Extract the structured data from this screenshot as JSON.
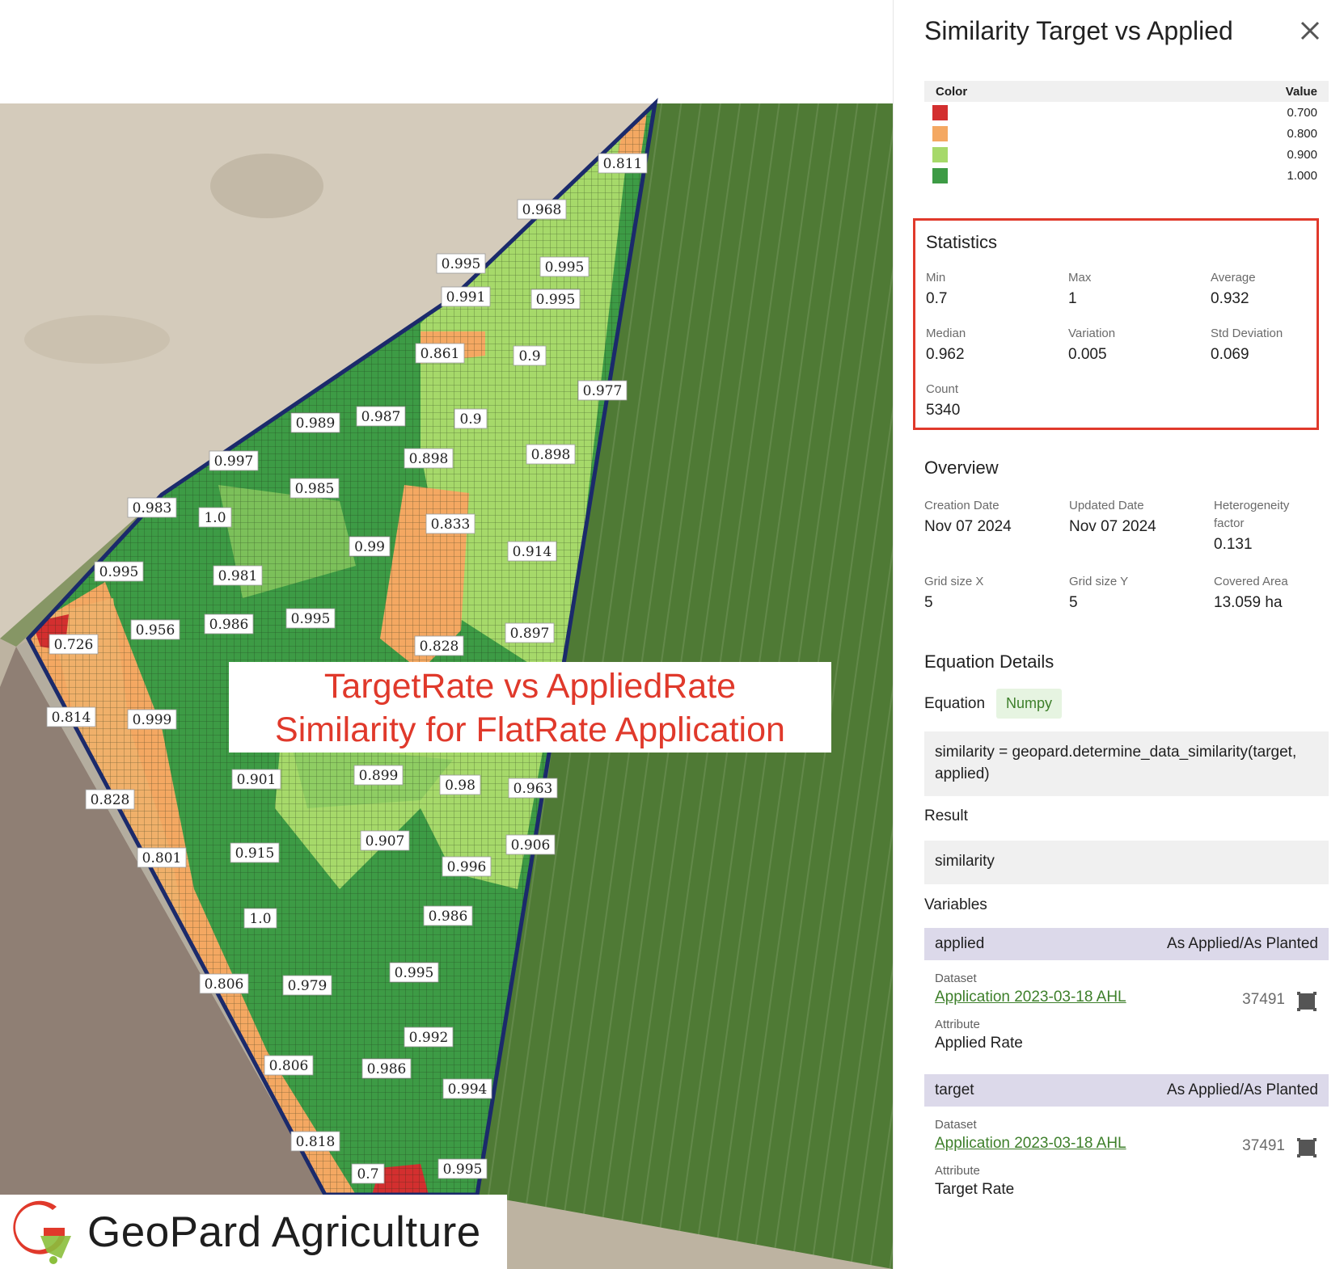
{
  "map": {
    "grid_labels": [
      "0.811",
      "0.968",
      "0.995",
      "0.995",
      "0.991",
      "0.995",
      "0.861",
      "0.9",
      "0.977",
      "0.989",
      "0.987",
      "0.9",
      "0.997",
      "0.898",
      "0.898",
      "0.985",
      "0.983",
      "1.0",
      "0.833",
      "0.99",
      "0.914",
      "0.995",
      "0.981",
      "0.956",
      "0.986",
      "0.995",
      "0.828",
      "0.897",
      "0.726",
      "0.814",
      "0.999",
      "0.901",
      "0.899",
      "0.98",
      "0.963",
      "0.828",
      "0.915",
      "0.907",
      "0.906",
      "0.801",
      "0.996",
      "1.0",
      "0.986",
      "0.806",
      "0.979",
      "0.995",
      "0.992",
      "0.806",
      "0.986",
      "0.994",
      "0.818",
      "0.7",
      "0.995"
    ],
    "caption_line1": "TargetRate vs AppliedRate",
    "caption_line2": "Similarity for FlatRate Application",
    "brand": "GeoPard Agriculture"
  },
  "panel": {
    "title": "Similarity Target vs Applied",
    "close_icon": "close-icon",
    "legend": {
      "col_color": "Color",
      "col_value": "Value",
      "rows": [
        {
          "color": "#d32f2f",
          "value": "0.700"
        },
        {
          "color": "#f4a862",
          "value": "0.800"
        },
        {
          "color": "#a6d96a",
          "value": "0.900"
        },
        {
          "color": "#3d9b45",
          "value": "1.000"
        }
      ]
    },
    "statistics": {
      "title": "Statistics",
      "min_label": "Min",
      "min": "0.7",
      "max_label": "Max",
      "max": "1",
      "avg_label": "Average",
      "avg": "0.932",
      "median_label": "Median",
      "median": "0.962",
      "variation_label": "Variation",
      "variation": "0.005",
      "std_label": "Std Deviation",
      "std": "0.069",
      "count_label": "Count",
      "count": "5340"
    },
    "overview": {
      "title": "Overview",
      "creation_label": "Creation Date",
      "creation": "Nov 07 2024",
      "updated_label": "Updated Date",
      "updated": "Nov 07 2024",
      "hetero_label": "Heterogeneity factor",
      "hetero": "0.131",
      "gridx_label": "Grid size X",
      "gridx": "5",
      "gridy_label": "Grid size Y",
      "gridy": "5",
      "area_label": "Covered Area",
      "area": "13.059 ha"
    },
    "equation": {
      "title": "Equation Details",
      "label": "Equation",
      "chip": "Numpy",
      "code": "similarity = geopard.determine_data_similarity(target, applied)",
      "result_label": "Result",
      "result": "similarity",
      "variables_label": "Variables",
      "variables": [
        {
          "name": "applied",
          "type": "As Applied/As Planted",
          "dataset_label": "Dataset",
          "dataset": "Application 2023-03-18 AHL",
          "count": "37491",
          "attribute_label": "Attribute",
          "attribute": "Applied Rate"
        },
        {
          "name": "target",
          "type": "As Applied/As Planted",
          "dataset_label": "Dataset",
          "dataset": "Application 2023-03-18 AHL",
          "count": "37491",
          "attribute_label": "Attribute",
          "attribute": "Target Rate"
        }
      ]
    }
  }
}
